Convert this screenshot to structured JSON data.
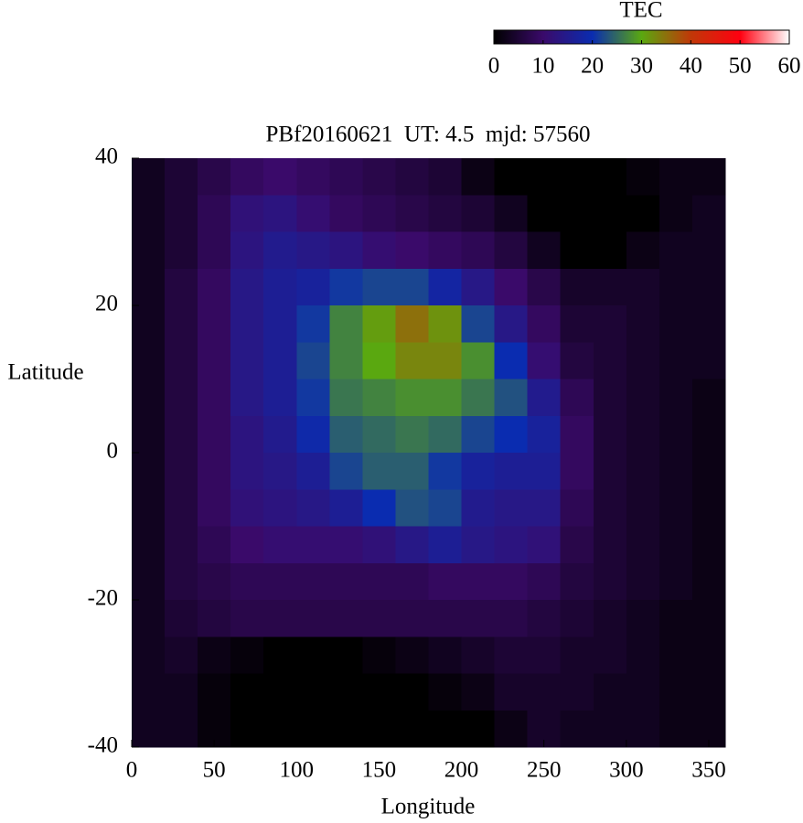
{
  "chart_data": {
    "type": "heatmap",
    "title": "PBf20160621  UT: 4.5  mjd: 57560",
    "xlabel": "Longitude",
    "ylabel": "Latitude",
    "xlim": [
      0,
      360
    ],
    "ylim": [
      -40,
      40
    ],
    "xticks": [
      0,
      50,
      100,
      150,
      200,
      250,
      300,
      350
    ],
    "yticks": [
      -40,
      -20,
      0,
      20,
      40
    ],
    "x": [
      10,
      30,
      50,
      70,
      90,
      110,
      130,
      150,
      170,
      190,
      210,
      230,
      250,
      270,
      290,
      310,
      330,
      350
    ],
    "y": [
      37.5,
      32.5,
      27.5,
      22.5,
      17.5,
      12.5,
      7.5,
      2.5,
      -2.5,
      -7.5,
      -12.5,
      -17.5,
      -22.5,
      -27.5,
      -32.5,
      -37.5
    ],
    "z": [
      [
        3,
        5,
        7,
        9,
        10,
        9,
        8,
        7,
        6,
        5,
        2,
        0,
        0,
        0,
        0,
        1,
        2,
        2
      ],
      [
        3,
        5,
        8,
        12,
        13,
        11,
        9,
        8,
        7,
        6,
        5,
        3,
        0,
        0,
        0,
        0,
        2,
        3
      ],
      [
        3,
        5,
        8,
        13,
        15,
        14,
        13,
        11,
        10,
        9,
        8,
        6,
        3,
        0,
        0,
        2,
        3,
        3
      ],
      [
        3,
        6,
        9,
        14,
        16,
        17,
        21,
        22,
        22,
        18,
        14,
        10,
        7,
        4,
        4,
        4,
        3,
        3
      ],
      [
        3,
        6,
        9,
        14,
        16,
        21,
        27,
        31,
        35,
        32,
        22,
        14,
        9,
        5,
        5,
        4,
        3,
        3
      ],
      [
        3,
        6,
        9,
        14,
        16,
        22,
        27,
        30,
        33,
        33,
        28,
        20,
        11,
        6,
        5,
        4,
        3,
        3
      ],
      [
        3,
        6,
        9,
        14,
        16,
        21,
        26,
        27,
        28,
        28,
        26,
        23,
        15,
        8,
        5,
        4,
        3,
        2
      ],
      [
        3,
        6,
        9,
        13,
        15,
        19,
        24,
        25,
        26,
        25,
        22,
        20,
        17,
        9,
        5,
        4,
        3,
        2
      ],
      [
        3,
        6,
        9,
        13,
        14,
        16,
        22,
        24,
        24,
        21,
        17,
        16,
        16,
        9,
        5,
        4,
        3,
        2
      ],
      [
        3,
        6,
        9,
        12,
        13,
        14,
        16,
        20,
        23,
        22,
        15,
        14,
        14,
        8,
        5,
        4,
        3,
        2
      ],
      [
        3,
        6,
        8,
        10,
        11,
        11,
        11,
        12,
        14,
        16,
        14,
        13,
        12,
        7,
        5,
        4,
        3,
        2
      ],
      [
        3,
        6,
        7,
        8,
        8,
        8,
        8,
        8,
        8,
        9,
        9,
        9,
        8,
        6,
        5,
        4,
        3,
        2
      ],
      [
        3,
        5,
        6,
        7,
        7,
        7,
        7,
        7,
        7,
        7,
        7,
        7,
        6,
        5,
        4,
        3,
        2,
        2
      ],
      [
        3,
        4,
        2,
        1,
        0,
        0,
        0,
        1,
        2,
        3,
        4,
        5,
        5,
        4,
        4,
        3,
        2,
        2
      ],
      [
        3,
        3,
        1,
        0,
        0,
        0,
        0,
        0,
        0,
        1,
        2,
        4,
        4,
        4,
        3,
        3,
        2,
        2
      ],
      [
        3,
        3,
        1,
        0,
        0,
        0,
        0,
        0,
        0,
        0,
        0,
        2,
        4,
        3,
        3,
        3,
        2,
        2
      ]
    ],
    "colorbar": {
      "label": "TEC",
      "lim": [
        0,
        60
      ],
      "ticks": [
        0,
        10,
        20,
        30,
        40,
        50,
        60
      ],
      "colors": [
        "#000000",
        "#3a0a6a",
        "#0a2cb0",
        "#5aa810",
        "#c03808",
        "#ff0010",
        "#ffffff"
      ]
    }
  }
}
